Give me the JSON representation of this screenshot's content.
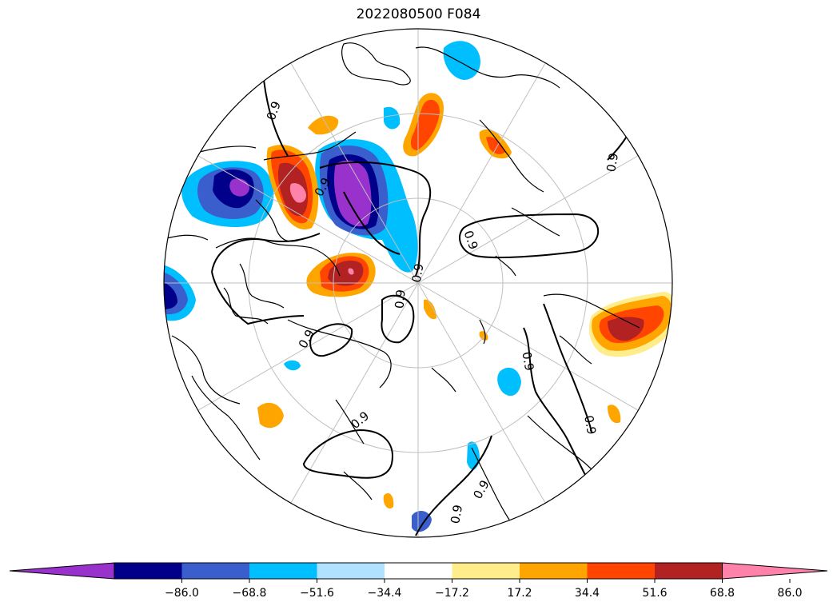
{
  "title": "2022080500 F084",
  "colorbar": {
    "levels": [
      -86.0,
      -68.8,
      -51.6,
      -34.4,
      -17.2,
      17.2,
      34.4,
      51.6,
      68.8,
      86.0
    ],
    "tick_labels": [
      "−86.0",
      "−68.8",
      "−51.6",
      "−34.4",
      "−17.2",
      "17.2",
      "34.4",
      "51.6",
      "68.8",
      "86.0"
    ],
    "colors": [
      "#9932CC",
      "#00008B",
      "#3A5FCD",
      "#00BFFF",
      "#B0E2FF",
      "#FFFFFF",
      "#FFEC8B",
      "#FFA500",
      "#FF4500",
      "#B22222",
      "#FF82AB"
    ],
    "extend": "both"
  },
  "contours": {
    "label": "0.9",
    "color": "#000000"
  },
  "map": {
    "projection": "north polar stereographic",
    "gridlines": true,
    "coastlines": true
  }
}
